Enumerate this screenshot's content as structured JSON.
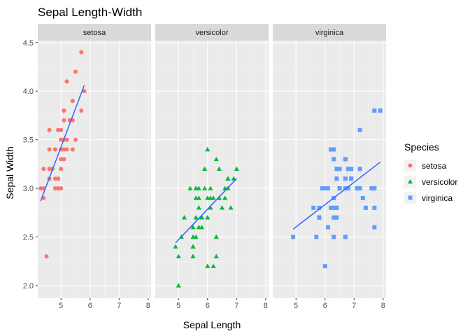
{
  "chart_data": {
    "type": "scatter",
    "title": "Sepal Length-Width",
    "xlabel": "Sepal Length",
    "ylabel": "Sepal Width",
    "x_ticks": [
      5,
      6,
      7,
      8
    ],
    "y_ticks": [
      2.0,
      2.5,
      3.0,
      3.5,
      4.0,
      4.5
    ],
    "y_tick_labels": [
      "2.0",
      "2.5",
      "3.0",
      "3.5",
      "4.0",
      "4.5"
    ],
    "xlim": [
      4.2,
      8.1
    ],
    "ylim": [
      1.87,
      4.52
    ],
    "grid": true,
    "legend": {
      "title": "Species",
      "position": "right",
      "entries": [
        {
          "label": "setosa",
          "shape": "circle"
        },
        {
          "label": "versicolor",
          "shape": "triangle"
        },
        {
          "label": "virginica",
          "shape": "square"
        }
      ]
    },
    "panels": [
      {
        "name": "setosa",
        "color": "#F8766D",
        "shape": "circle",
        "fit": {
          "x0": 4.3,
          "y0": 2.87,
          "x1": 5.8,
          "y1": 4.06
        },
        "points": [
          [
            5.1,
            3.5
          ],
          [
            4.9,
            3.0
          ],
          [
            4.7,
            3.2
          ],
          [
            4.6,
            3.1
          ],
          [
            5.0,
            3.6
          ],
          [
            5.4,
            3.9
          ],
          [
            4.6,
            3.4
          ],
          [
            5.0,
            3.4
          ],
          [
            4.4,
            2.9
          ],
          [
            4.9,
            3.1
          ],
          [
            5.4,
            3.7
          ],
          [
            4.8,
            3.4
          ],
          [
            4.8,
            3.0
          ],
          [
            4.3,
            3.0
          ],
          [
            5.8,
            4.0
          ],
          [
            5.7,
            4.4
          ],
          [
            5.4,
            3.9
          ],
          [
            5.1,
            3.5
          ],
          [
            5.7,
            3.8
          ],
          [
            5.1,
            3.8
          ],
          [
            5.4,
            3.4
          ],
          [
            5.1,
            3.7
          ],
          [
            4.6,
            3.6
          ],
          [
            5.1,
            3.3
          ],
          [
            4.8,
            3.4
          ],
          [
            5.0,
            3.0
          ],
          [
            5.0,
            3.4
          ],
          [
            5.2,
            3.5
          ],
          [
            5.2,
            3.4
          ],
          [
            4.7,
            3.2
          ],
          [
            4.8,
            3.1
          ],
          [
            5.4,
            3.4
          ],
          [
            5.2,
            4.1
          ],
          [
            5.5,
            4.2
          ],
          [
            4.9,
            3.1
          ],
          [
            5.0,
            3.2
          ],
          [
            5.5,
            3.5
          ],
          [
            4.9,
            3.6
          ],
          [
            4.4,
            3.0
          ],
          [
            5.1,
            3.4
          ],
          [
            5.0,
            3.5
          ],
          [
            4.5,
            2.3
          ],
          [
            4.4,
            3.2
          ],
          [
            5.0,
            3.5
          ],
          [
            5.1,
            3.8
          ],
          [
            4.8,
            3.0
          ],
          [
            5.1,
            3.8
          ],
          [
            4.6,
            3.2
          ],
          [
            5.3,
            3.7
          ],
          [
            5.0,
            3.3
          ]
        ]
      },
      {
        "name": "versicolor",
        "color": "#00BA38",
        "shape": "triangle",
        "fit": {
          "x0": 4.9,
          "y0": 2.44,
          "x1": 7.0,
          "y1": 3.1
        },
        "points": [
          [
            7.0,
            3.2
          ],
          [
            6.4,
            3.2
          ],
          [
            6.9,
            3.1
          ],
          [
            5.5,
            2.3
          ],
          [
            6.5,
            2.8
          ],
          [
            5.7,
            2.8
          ],
          [
            6.3,
            3.3
          ],
          [
            4.9,
            2.4
          ],
          [
            6.6,
            2.9
          ],
          [
            5.2,
            2.7
          ],
          [
            5.0,
            2.0
          ],
          [
            5.9,
            3.0
          ],
          [
            6.0,
            2.2
          ],
          [
            6.1,
            2.9
          ],
          [
            5.6,
            2.9
          ],
          [
            6.7,
            3.1
          ],
          [
            5.6,
            3.0
          ],
          [
            5.8,
            2.7
          ],
          [
            6.2,
            2.2
          ],
          [
            5.6,
            2.5
          ],
          [
            5.9,
            3.2
          ],
          [
            6.1,
            2.8
          ],
          [
            6.3,
            2.5
          ],
          [
            6.1,
            2.8
          ],
          [
            6.4,
            2.9
          ],
          [
            6.6,
            3.0
          ],
          [
            6.8,
            2.8
          ],
          [
            6.7,
            3.0
          ],
          [
            6.0,
            2.9
          ],
          [
            5.7,
            2.6
          ],
          [
            5.5,
            2.4
          ],
          [
            5.5,
            2.4
          ],
          [
            5.8,
            2.7
          ],
          [
            6.0,
            2.7
          ],
          [
            5.4,
            3.0
          ],
          [
            6.0,
            3.4
          ],
          [
            6.7,
            3.1
          ],
          [
            6.3,
            2.3
          ],
          [
            5.6,
            3.0
          ],
          [
            5.5,
            2.5
          ],
          [
            5.5,
            2.6
          ],
          [
            6.1,
            3.0
          ],
          [
            5.8,
            2.6
          ],
          [
            5.0,
            2.3
          ],
          [
            5.6,
            2.7
          ],
          [
            5.7,
            3.0
          ],
          [
            5.7,
            2.9
          ],
          [
            6.2,
            2.9
          ],
          [
            5.1,
            2.5
          ],
          [
            5.7,
            2.8
          ]
        ]
      },
      {
        "name": "virginica",
        "color": "#619CFF",
        "shape": "square",
        "fit": {
          "x0": 4.9,
          "y0": 2.58,
          "x1": 7.9,
          "y1": 3.27
        },
        "points": [
          [
            6.3,
            3.3
          ],
          [
            5.8,
            2.7
          ],
          [
            7.1,
            3.0
          ],
          [
            6.3,
            2.9
          ],
          [
            6.5,
            3.0
          ],
          [
            7.6,
            3.0
          ],
          [
            4.9,
            2.5
          ],
          [
            7.3,
            2.9
          ],
          [
            6.7,
            2.5
          ],
          [
            7.2,
            3.6
          ],
          [
            6.5,
            3.2
          ],
          [
            6.4,
            2.7
          ],
          [
            6.8,
            3.0
          ],
          [
            5.7,
            2.5
          ],
          [
            5.8,
            2.8
          ],
          [
            6.4,
            3.2
          ],
          [
            6.5,
            3.0
          ],
          [
            7.7,
            3.8
          ],
          [
            7.7,
            2.6
          ],
          [
            6.0,
            2.2
          ],
          [
            6.9,
            3.2
          ],
          [
            5.6,
            2.8
          ],
          [
            7.7,
            2.8
          ],
          [
            6.3,
            2.7
          ],
          [
            6.7,
            3.3
          ],
          [
            7.2,
            3.2
          ],
          [
            6.2,
            2.8
          ],
          [
            6.1,
            3.0
          ],
          [
            6.4,
            2.8
          ],
          [
            7.2,
            3.0
          ],
          [
            7.4,
            2.8
          ],
          [
            7.9,
            3.8
          ],
          [
            6.4,
            2.8
          ],
          [
            6.3,
            2.8
          ],
          [
            6.1,
            2.6
          ],
          [
            7.7,
            3.0
          ],
          [
            6.3,
            3.4
          ],
          [
            6.4,
            3.1
          ],
          [
            6.0,
            3.0
          ],
          [
            6.9,
            3.1
          ],
          [
            6.7,
            3.1
          ],
          [
            6.9,
            3.1
          ],
          [
            5.8,
            2.7
          ],
          [
            6.8,
            3.2
          ],
          [
            6.7,
            3.3
          ],
          [
            6.7,
            3.0
          ],
          [
            6.3,
            2.5
          ],
          [
            6.5,
            3.0
          ],
          [
            6.2,
            3.4
          ],
          [
            5.9,
            3.0
          ]
        ]
      }
    ]
  }
}
